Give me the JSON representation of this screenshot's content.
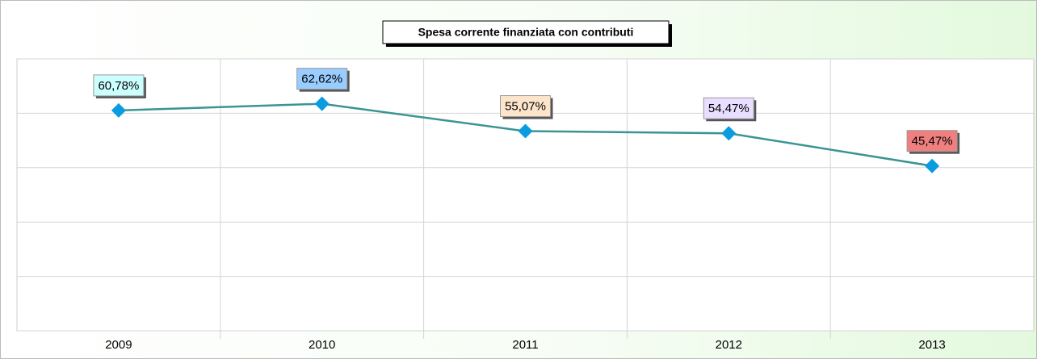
{
  "chart_data": {
    "type": "line",
    "title": "Spesa corrente finanziata con contributi",
    "categories": [
      "2009",
      "2010",
      "2011",
      "2012",
      "2013"
    ],
    "series": [
      {
        "color": "#3b9494",
        "marker_color": "#0a9be0",
        "values": [
          60.78,
          62.62,
          55.07,
          54.47,
          45.47
        ],
        "value_labels": [
          "60,78%",
          "62,62%",
          "55,07%",
          "54,47%",
          "45,47%"
        ]
      }
    ],
    "label_colors": [
      "#ccffff",
      "#99ccff",
      "#fde5cc",
      "#e8deff",
      "#f08080"
    ],
    "ylim": [
      0,
      75
    ],
    "yticks": [
      0,
      15,
      30,
      45,
      60,
      75
    ],
    "grid": true
  }
}
